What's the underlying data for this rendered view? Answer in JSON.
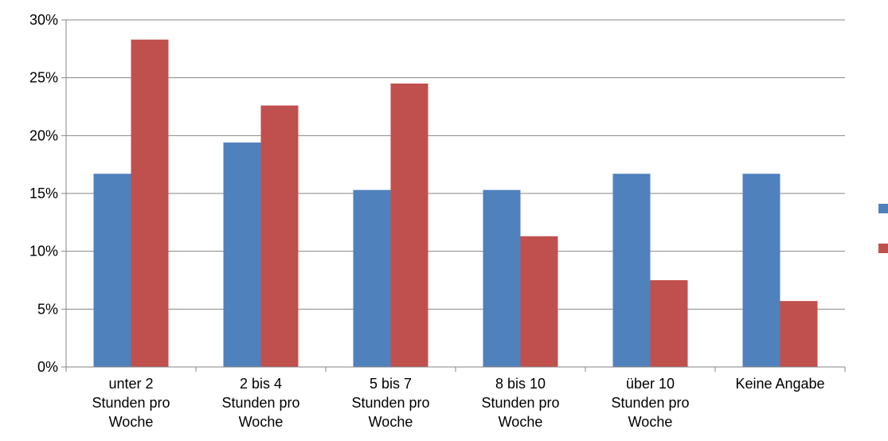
{
  "chart_data": {
    "type": "bar",
    "title": "",
    "xlabel": "",
    "ylabel": "",
    "ylim": [
      0,
      30
    ],
    "y_ticks": [
      "0%",
      "5%",
      "10%",
      "15%",
      "20%",
      "25%",
      "30%"
    ],
    "y_tick_values": [
      0,
      5,
      10,
      15,
      20,
      25,
      30
    ],
    "grid": true,
    "legend_position": "right",
    "categories": [
      [
        "unter 2",
        "Stunden pro",
        "Woche"
      ],
      [
        "2 bis 4",
        "Stunden pro",
        "Woche"
      ],
      [
        "5 bis 7",
        "Stunden pro",
        "Woche"
      ],
      [
        "8 bis 10",
        "Stunden pro",
        "Woche"
      ],
      [
        "über 10",
        "Stunden pro",
        "Woche"
      ],
      [
        "Keine Angabe"
      ]
    ],
    "series": [
      {
        "color": "#4F81BD",
        "values": [
          16.7,
          19.4,
          15.3,
          15.3,
          16.7,
          16.7
        ]
      },
      {
        "color": "#C0504D",
        "values": [
          28.3,
          22.6,
          24.5,
          11.3,
          7.5,
          5.7
        ]
      }
    ]
  }
}
